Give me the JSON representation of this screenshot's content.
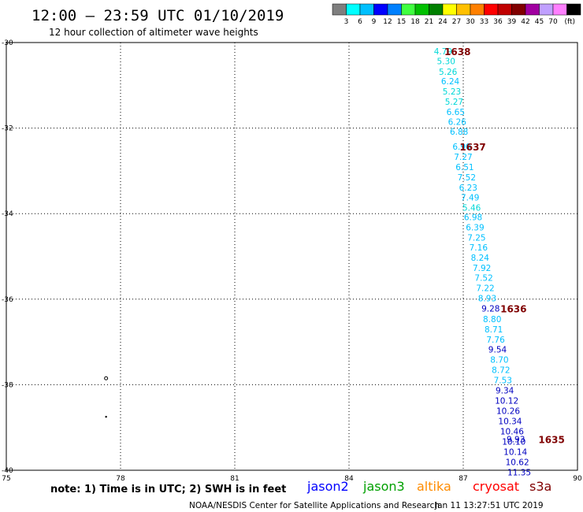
{
  "header": {
    "title": "12:00 – 23:59 UTC 01/10/2019",
    "subtitle": "12 hour collection of altimeter wave heights"
  },
  "colorbar": {
    "unit": "(ft)",
    "colors": [
      "#7f7f7f",
      "#00ffff",
      "#00c0ff",
      "#0000ff",
      "#0080ff",
      "#40ff40",
      "#00c000",
      "#008000",
      "#ffff00",
      "#ffc000",
      "#ff8000",
      "#ff0000",
      "#c00000",
      "#800000",
      "#a000a0",
      "#c0a0ff",
      "#ff80ff",
      "#000000"
    ],
    "labels": [
      "3",
      "6",
      "9",
      "12",
      "15",
      "18",
      "21",
      "24",
      "27",
      "30",
      "33",
      "36",
      "39",
      "42",
      "45",
      "70"
    ]
  },
  "chart_data": {
    "type": "scatter",
    "xlim": [
      75,
      90
    ],
    "ylim": [
      -40,
      -30
    ],
    "x_ticks": [
      "75",
      "78",
      "81",
      "84",
      "87",
      "90"
    ],
    "y_ticks": [
      "-30",
      "-32",
      "-34",
      "-36",
      "-38",
      "-40"
    ],
    "grid": true,
    "points": [
      {
        "x": 86.47,
        "y": -30.2,
        "label": "4.79",
        "color": "#00d8d8"
      },
      {
        "x": 86.55,
        "y": -30.43,
        "label": "5.30",
        "color": "#00d8d8"
      },
      {
        "x": 86.6,
        "y": -30.68,
        "label": "5.26",
        "color": "#00d8d8"
      },
      {
        "x": 86.66,
        "y": -30.9,
        "label": "6.24",
        "color": "#00c0ff"
      },
      {
        "x": 86.7,
        "y": -31.14,
        "label": "5.23",
        "color": "#00d8d8"
      },
      {
        "x": 86.76,
        "y": -31.38,
        "label": "5.27",
        "color": "#00d8d8"
      },
      {
        "x": 86.8,
        "y": -31.62,
        "label": "6.65",
        "color": "#00c0ff"
      },
      {
        "x": 86.84,
        "y": -31.85,
        "label": "6.26",
        "color": "#00c0ff"
      },
      {
        "x": 86.89,
        "y": -32.08,
        "label": "6.88",
        "color": "#00c0ff"
      },
      {
        "x": 86.96,
        "y": -32.43,
        "label": "6.90",
        "color": "#00c0ff"
      },
      {
        "x": 87.0,
        "y": -32.67,
        "label": "7.27",
        "color": "#00c0ff"
      },
      {
        "x": 87.04,
        "y": -32.91,
        "label": "6.51",
        "color": "#00c0ff"
      },
      {
        "x": 87.09,
        "y": -33.15,
        "label": "7.52",
        "color": "#00c0ff"
      },
      {
        "x": 87.13,
        "y": -33.39,
        "label": "6.23",
        "color": "#00c0ff"
      },
      {
        "x": 87.18,
        "y": -33.62,
        "label": "7.49",
        "color": "#00c0ff"
      },
      {
        "x": 87.22,
        "y": -33.86,
        "label": "5.46",
        "color": "#00d8d8"
      },
      {
        "x": 87.26,
        "y": -34.08,
        "label": "6.98",
        "color": "#00c0ff"
      },
      {
        "x": 87.31,
        "y": -34.32,
        "label": "6.39",
        "color": "#00c0ff"
      },
      {
        "x": 87.35,
        "y": -34.56,
        "label": "7.25",
        "color": "#00c0ff"
      },
      {
        "x": 87.4,
        "y": -34.79,
        "label": "7.16",
        "color": "#00c0ff"
      },
      {
        "x": 87.44,
        "y": -35.03,
        "label": "8.24",
        "color": "#00c0ff"
      },
      {
        "x": 87.49,
        "y": -35.27,
        "label": "7.92",
        "color": "#00c0ff"
      },
      {
        "x": 87.54,
        "y": -35.5,
        "label": "7.52",
        "color": "#00c0ff"
      },
      {
        "x": 87.58,
        "y": -35.74,
        "label": "7.22",
        "color": "#00c0ff"
      },
      {
        "x": 87.63,
        "y": -35.98,
        "label": "8.93",
        "color": "#00c0ff"
      },
      {
        "x": 87.72,
        "y": -36.22,
        "label": "9.28",
        "color": "#0000c0"
      },
      {
        "x": 87.76,
        "y": -36.46,
        "label": "8.80",
        "color": "#00c0ff"
      },
      {
        "x": 87.8,
        "y": -36.7,
        "label": "8.71",
        "color": "#00c0ff"
      },
      {
        "x": 87.85,
        "y": -36.94,
        "label": "7.76",
        "color": "#00c0ff"
      },
      {
        "x": 87.9,
        "y": -37.17,
        "label": "9.54",
        "color": "#0000c0"
      },
      {
        "x": 87.95,
        "y": -37.41,
        "label": "8.70",
        "color": "#00c0ff"
      },
      {
        "x": 87.99,
        "y": -37.65,
        "label": "8.72",
        "color": "#00c0ff"
      },
      {
        "x": 88.04,
        "y": -37.89,
        "label": "7.53",
        "color": "#00c0ff"
      },
      {
        "x": 88.09,
        "y": -38.13,
        "label": "9.34",
        "color": "#0000c0"
      },
      {
        "x": 88.14,
        "y": -38.37,
        "label": "10.12",
        "color": "#0000c0"
      },
      {
        "x": 88.18,
        "y": -38.61,
        "label": "10.26",
        "color": "#0000c0"
      },
      {
        "x": 88.23,
        "y": -38.85,
        "label": "10.34",
        "color": "#0000c0"
      },
      {
        "x": 88.28,
        "y": -39.09,
        "label": "10.46",
        "color": "#0000c0"
      },
      {
        "x": 88.38,
        "y": -39.27,
        "label": "9.93",
        "color": "#0000c0"
      },
      {
        "x": 88.33,
        "y": -39.33,
        "label": "10.10",
        "color": "#0000c0"
      },
      {
        "x": 88.37,
        "y": -39.57,
        "label": "10.14",
        "color": "#0000c0"
      },
      {
        "x": 88.42,
        "y": -39.81,
        "label": "10.62",
        "color": "#0000c0"
      },
      {
        "x": 88.47,
        "y": -40.05,
        "label": "11.35",
        "color": "#0000c0"
      }
    ],
    "time_labels": [
      {
        "x": 86.85,
        "y": -30.2,
        "label": "1638"
      },
      {
        "x": 87.25,
        "y": -32.43,
        "label": "1637"
      },
      {
        "x": 88.32,
        "y": -36.22,
        "label": "1636"
      },
      {
        "x": 89.32,
        "y": -39.27,
        "label": "1635"
      }
    ],
    "markers": [
      {
        "x": 77.62,
        "y": -37.85
      },
      {
        "x": 77.62,
        "y": -38.75
      }
    ]
  },
  "footer": {
    "note": "note:  1) Time is in UTC;  2) SWH is in feet",
    "legend": [
      {
        "name": "jason2",
        "color": "#0000ff"
      },
      {
        "name": "jason3",
        "color": "#00a000"
      },
      {
        "name": "altika",
        "color": "#ff8c00"
      },
      {
        "name": "cryosat",
        "color": "#ff0000"
      },
      {
        "name": "s3a",
        "color": "#800000"
      }
    ],
    "credit": "NOAA/NESDIS Center for Satellite Applications and Research",
    "timestamp": "Jan 11 13:27:51 UTC 2019"
  }
}
